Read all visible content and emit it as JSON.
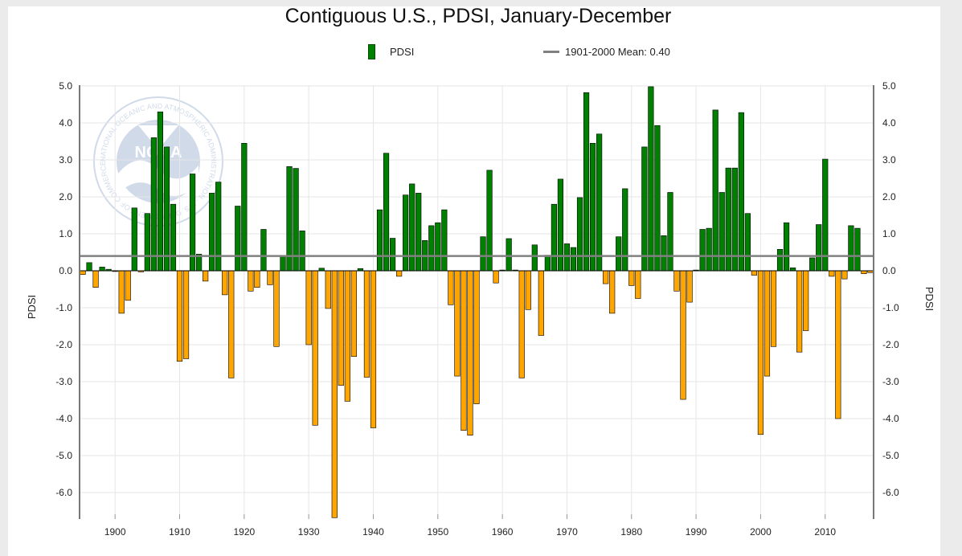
{
  "colors": {
    "positive": "#008000",
    "negative": "#ffa500",
    "mean_line": "#808080",
    "grid": "#e6e6e6"
  },
  "legend": {
    "series_label": "PDSI",
    "mean_label": "1901-2000 Mean: 0.40",
    "position": "top-center"
  },
  "watermark": {
    "label": "NOAA",
    "ring_text": "NATIONAL OCEANIC AND ATMOSPHERIC ADMINISTRATION · U.S. DEPARTMENT OF COMMERCE",
    "icon": "noaa-logo-icon"
  },
  "chart_data": {
    "type": "bar",
    "title": "Contiguous U.S., PDSI, January-December",
    "xlabel": "",
    "ylabel": "PDSI",
    "ylabel_right": "PDSI",
    "ylim": [
      -6.8,
      5.0
    ],
    "xlim": [
      1894.5,
      2017.5
    ],
    "yticks": [
      -6.0,
      -5.0,
      -4.0,
      -3.0,
      -2.0,
      -1.0,
      0.0,
      1.0,
      2.0,
      3.0,
      4.0,
      5.0
    ],
    "ytick_labels": [
      "-6.0",
      "-5.0",
      "-4.0",
      "-3.0",
      "-2.0",
      "-1.0",
      "0.0",
      "1.0",
      "2.0",
      "3.0",
      "4.0",
      "5.0"
    ],
    "xticks": [
      1900,
      1910,
      1920,
      1930,
      1940,
      1950,
      1960,
      1970,
      1980,
      1990,
      2000,
      2010
    ],
    "xtick_labels": [
      "1900",
      "1910",
      "1920",
      "1930",
      "1940",
      "1950",
      "1960",
      "1970",
      "1980",
      "1990",
      "2000",
      "2010"
    ],
    "grid": true,
    "mean": 0.4,
    "series": [
      {
        "name": "PDSI",
        "x": [
          1895,
          1896,
          1897,
          1898,
          1899,
          1900,
          1901,
          1902,
          1903,
          1904,
          1905,
          1906,
          1907,
          1908,
          1909,
          1910,
          1911,
          1912,
          1913,
          1914,
          1915,
          1916,
          1917,
          1918,
          1919,
          1920,
          1921,
          1922,
          1923,
          1924,
          1925,
          1926,
          1927,
          1928,
          1929,
          1930,
          1931,
          1932,
          1933,
          1934,
          1935,
          1936,
          1937,
          1938,
          1939,
          1940,
          1941,
          1942,
          1943,
          1944,
          1945,
          1946,
          1947,
          1948,
          1949,
          1950,
          1951,
          1952,
          1953,
          1954,
          1955,
          1956,
          1957,
          1958,
          1959,
          1960,
          1961,
          1962,
          1963,
          1964,
          1965,
          1966,
          1967,
          1968,
          1969,
          1970,
          1971,
          1972,
          1973,
          1974,
          1975,
          1976,
          1977,
          1978,
          1979,
          1980,
          1981,
          1982,
          1983,
          1984,
          1985,
          1986,
          1987,
          1988,
          1989,
          1990,
          1991,
          1992,
          1993,
          1994,
          1995,
          1996,
          1997,
          1998,
          1999,
          2000,
          2001,
          2002,
          2003,
          2004,
          2005,
          2006,
          2007,
          2008,
          2009,
          2010,
          2011,
          2012,
          2013,
          2014,
          2015,
          2016,
          2017
        ],
        "values": [
          -0.1,
          0.22,
          -0.45,
          0.1,
          0.04,
          -0.02,
          -1.15,
          -0.8,
          1.7,
          -0.03,
          1.55,
          3.6,
          4.3,
          3.35,
          1.8,
          -2.45,
          -2.38,
          2.62,
          0.45,
          -0.28,
          2.1,
          2.4,
          -0.65,
          -2.9,
          1.75,
          3.45,
          -0.55,
          -0.45,
          1.12,
          -0.38,
          -2.05,
          0.4,
          2.82,
          2.77,
          1.08,
          -2.0,
          -4.18,
          0.07,
          -1.02,
          -6.68,
          -3.1,
          -3.53,
          -2.32,
          0.06,
          -2.88,
          -4.25,
          1.65,
          3.18,
          0.88,
          -0.15,
          2.05,
          2.35,
          2.1,
          0.82,
          1.22,
          1.3,
          1.65,
          -0.92,
          -2.85,
          -4.32,
          -4.45,
          -3.6,
          0.92,
          2.72,
          -0.33,
          0.02,
          0.87,
          0.02,
          -2.9,
          -1.05,
          0.7,
          -1.75,
          0.42,
          1.8,
          2.48,
          0.73,
          0.63,
          1.98,
          4.82,
          3.45,
          3.7,
          -0.35,
          -1.15,
          0.92,
          2.22,
          -0.4,
          -0.75,
          3.35,
          4.98,
          3.93,
          0.95,
          2.12,
          -0.55,
          -3.48,
          -0.85,
          0.02,
          1.12,
          1.15,
          4.35,
          2.12,
          2.78,
          2.78,
          4.28,
          1.55,
          -0.12,
          -4.43,
          -2.85,
          -2.05,
          0.58,
          1.3,
          0.08,
          -2.2,
          -1.62,
          0.35,
          1.25,
          3.02,
          -0.15,
          -4.0,
          -0.22,
          1.22,
          1.15,
          -0.08,
          -0.05
        ]
      }
    ]
  }
}
